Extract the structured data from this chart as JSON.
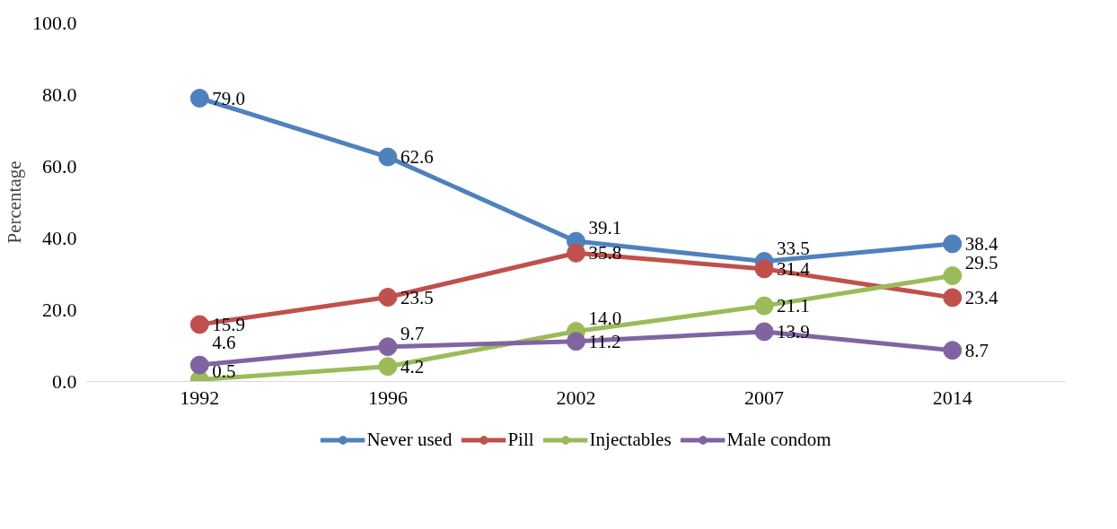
{
  "chart_data": {
    "type": "line",
    "ylabel": "Percentage",
    "categories": [
      "1992",
      "1996",
      "2002",
      "2007",
      "2014"
    ],
    "series": [
      {
        "name": "Never used",
        "color": "#4f81bd",
        "values": [
          79.0,
          62.6,
          39.1,
          33.5,
          38.4
        ],
        "value_labels": [
          "79.0",
          "62.6",
          "39.1",
          "33.5",
          "38.4"
        ]
      },
      {
        "name": "Pill",
        "color": "#c0504d",
        "values": [
          15.9,
          23.5,
          35.8,
          31.4,
          23.4
        ],
        "value_labels": [
          "15.9",
          "23.5",
          "35.8",
          "31.4",
          "23.4"
        ]
      },
      {
        "name": "Injectables",
        "color": "#9bbb59",
        "values": [
          0.5,
          4.2,
          14.0,
          21.1,
          29.5
        ],
        "value_labels": [
          "0.5",
          "4.2",
          "14.0",
          "21.1",
          "29.5"
        ]
      },
      {
        "name": "Male condom",
        "color": "#8064a2",
        "values": [
          4.6,
          9.7,
          11.2,
          13.9,
          8.7
        ],
        "value_labels": [
          "4.6",
          "9.7",
          "11.2",
          "13.9",
          "8.7"
        ]
      }
    ],
    "ylim": [
      0,
      100
    ],
    "yticks": [
      {
        "value": 0,
        "label": "0.0"
      },
      {
        "value": 20,
        "label": "20.0"
      },
      {
        "value": 40,
        "label": "40.0"
      },
      {
        "value": 60,
        "label": "60.0"
      },
      {
        "value": 80,
        "label": "80.0"
      },
      {
        "value": 100,
        "label": "100.0"
      }
    ],
    "data_labels": true,
    "grid": false,
    "legend": "bottom",
    "marker": "circle",
    "line_style": "solid"
  }
}
